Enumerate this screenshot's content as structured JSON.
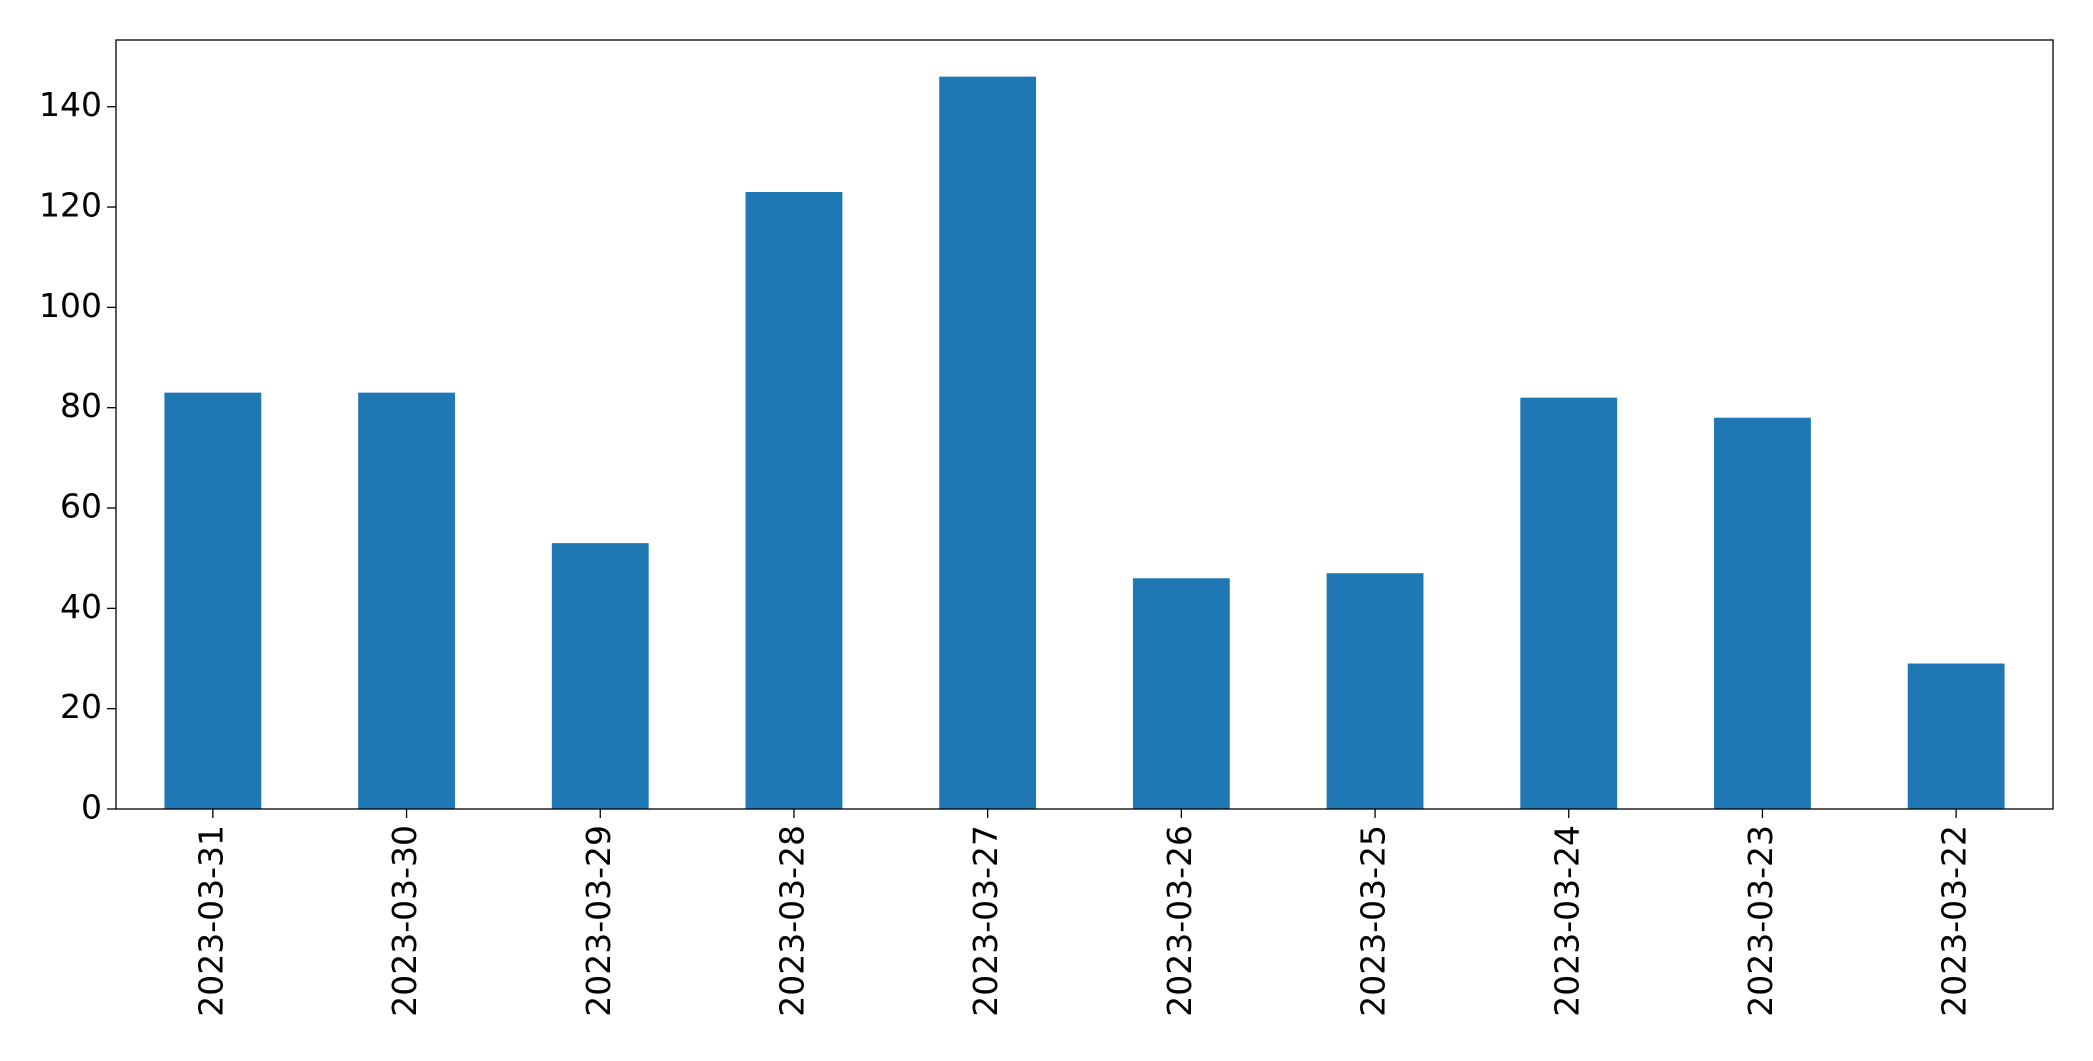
{
  "chart_data": {
    "type": "bar",
    "categories": [
      "2023-03-31",
      "2023-03-30",
      "2023-03-29",
      "2023-03-28",
      "2023-03-27",
      "2023-03-26",
      "2023-03-25",
      "2023-03-24",
      "2023-03-23",
      "2023-03-22"
    ],
    "values": [
      83,
      83,
      53,
      123,
      146,
      46,
      47,
      82,
      78,
      29
    ],
    "color": "#1f77b4",
    "ylim": [
      0,
      153.3
    ],
    "yticks": [
      0,
      20,
      40,
      60,
      80,
      100,
      120,
      140
    ],
    "grid": false
  }
}
